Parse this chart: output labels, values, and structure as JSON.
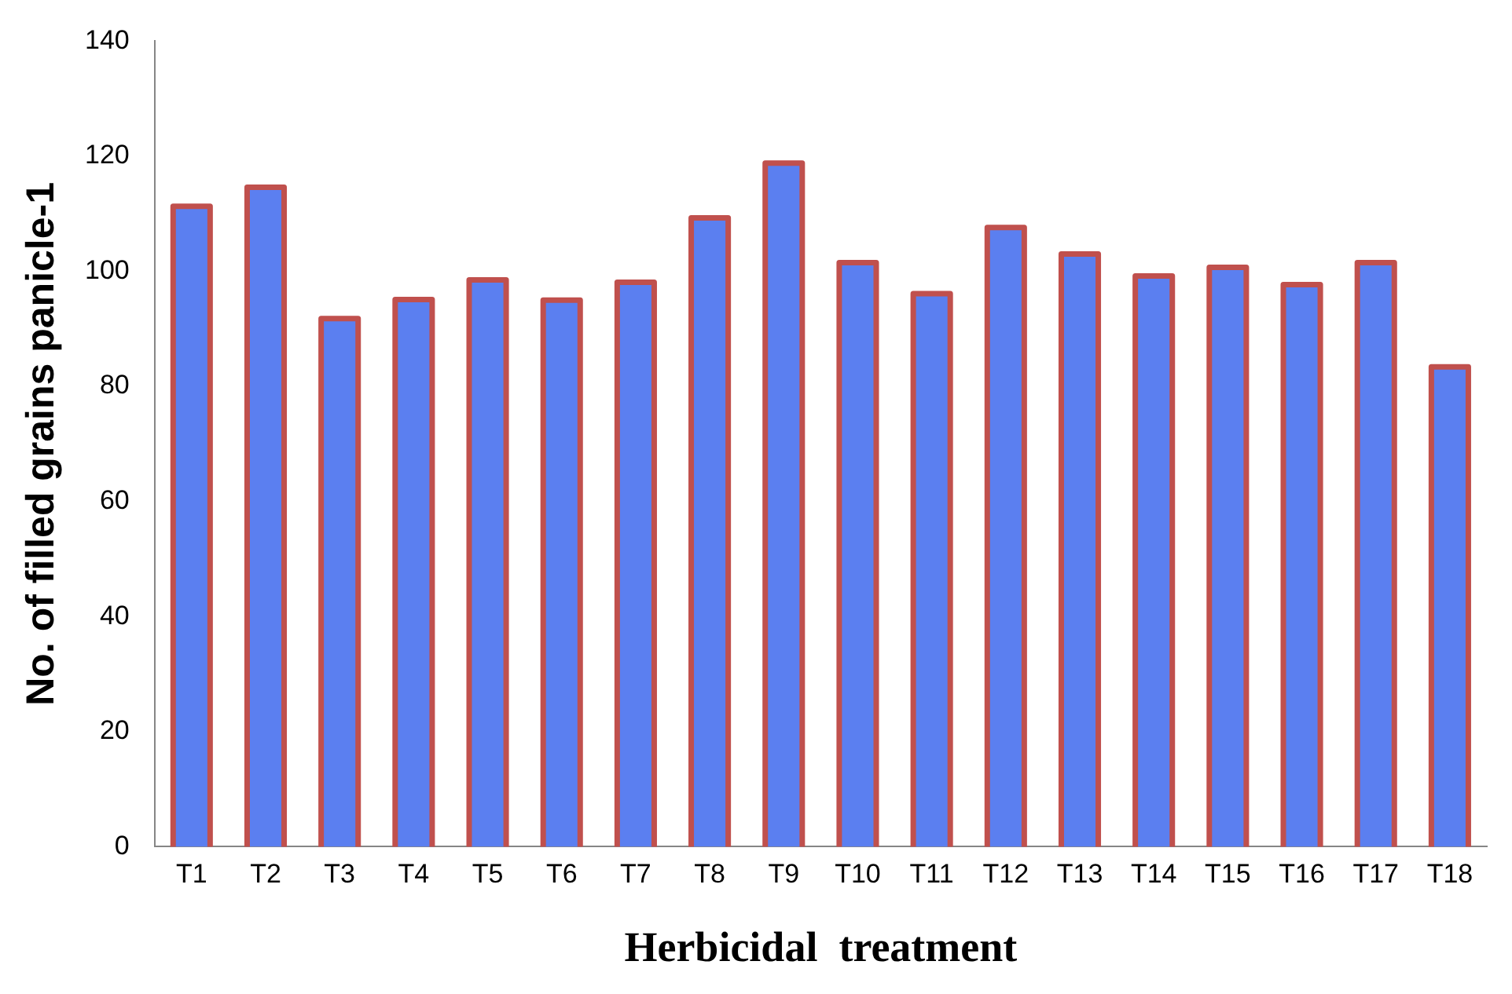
{
  "chart_data": {
    "type": "bar",
    "xlabel": "Herbicidal  treatment",
    "ylabel": "No. of filled grains panicle-1",
    "categories": [
      "T1",
      "T2",
      "T3",
      "T4",
      "T5",
      "T6",
      "T7",
      "T8",
      "T9",
      "T10",
      "T11",
      "T12",
      "T13",
      "T14",
      "T15",
      "T16",
      "T17",
      "T18"
    ],
    "series": [
      {
        "color": "#5b7ff0",
        "values": [
          111.3,
          114.6,
          91.8,
          95.1,
          98.5,
          95.0,
          98.1,
          109.3,
          118.8,
          101.5,
          96.1,
          107.6,
          103.0,
          99.2,
          100.7,
          97.7,
          101.5,
          83.4
        ]
      }
    ],
    "ylim": [
      0,
      140
    ],
    "yticks": [
      0,
      20,
      40,
      60,
      80,
      100,
      120,
      140
    ],
    "grid": false,
    "legend": false
  }
}
